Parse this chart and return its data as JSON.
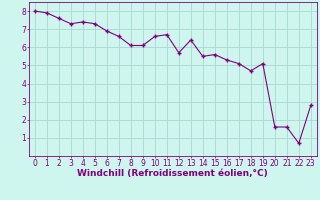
{
  "x": [
    0,
    1,
    2,
    3,
    4,
    5,
    6,
    7,
    8,
    9,
    10,
    11,
    12,
    13,
    14,
    15,
    16,
    17,
    18,
    19,
    20,
    21,
    22,
    23
  ],
  "y": [
    8.0,
    7.9,
    7.6,
    7.3,
    7.4,
    7.3,
    6.9,
    6.6,
    6.1,
    6.1,
    6.6,
    6.7,
    5.7,
    6.4,
    5.5,
    5.6,
    5.3,
    5.1,
    4.7,
    5.1,
    1.6,
    1.6,
    0.7,
    2.8
  ],
  "line_color": "#800080",
  "marker": "+",
  "marker_size": 3.5,
  "marker_linewidth": 1.0,
  "linewidth": 0.8,
  "bg_color": "#cef5ee",
  "grid_color": "#a8d8d0",
  "xlabel": "Windchill (Refroidissement éolien,°C)",
  "xlabel_color": "#800080",
  "xlabel_fontsize": 6.5,
  "tick_color": "#800080",
  "tick_fontsize": 5.5,
  "ylim": [
    0,
    8.5
  ],
  "xlim": [
    -0.5,
    23.5
  ],
  "yticks": [
    1,
    2,
    3,
    4,
    5,
    6,
    7,
    8
  ],
  "xticks": [
    0,
    1,
    2,
    3,
    4,
    5,
    6,
    7,
    8,
    9,
    10,
    11,
    12,
    13,
    14,
    15,
    16,
    17,
    18,
    19,
    20,
    21,
    22,
    23
  ]
}
